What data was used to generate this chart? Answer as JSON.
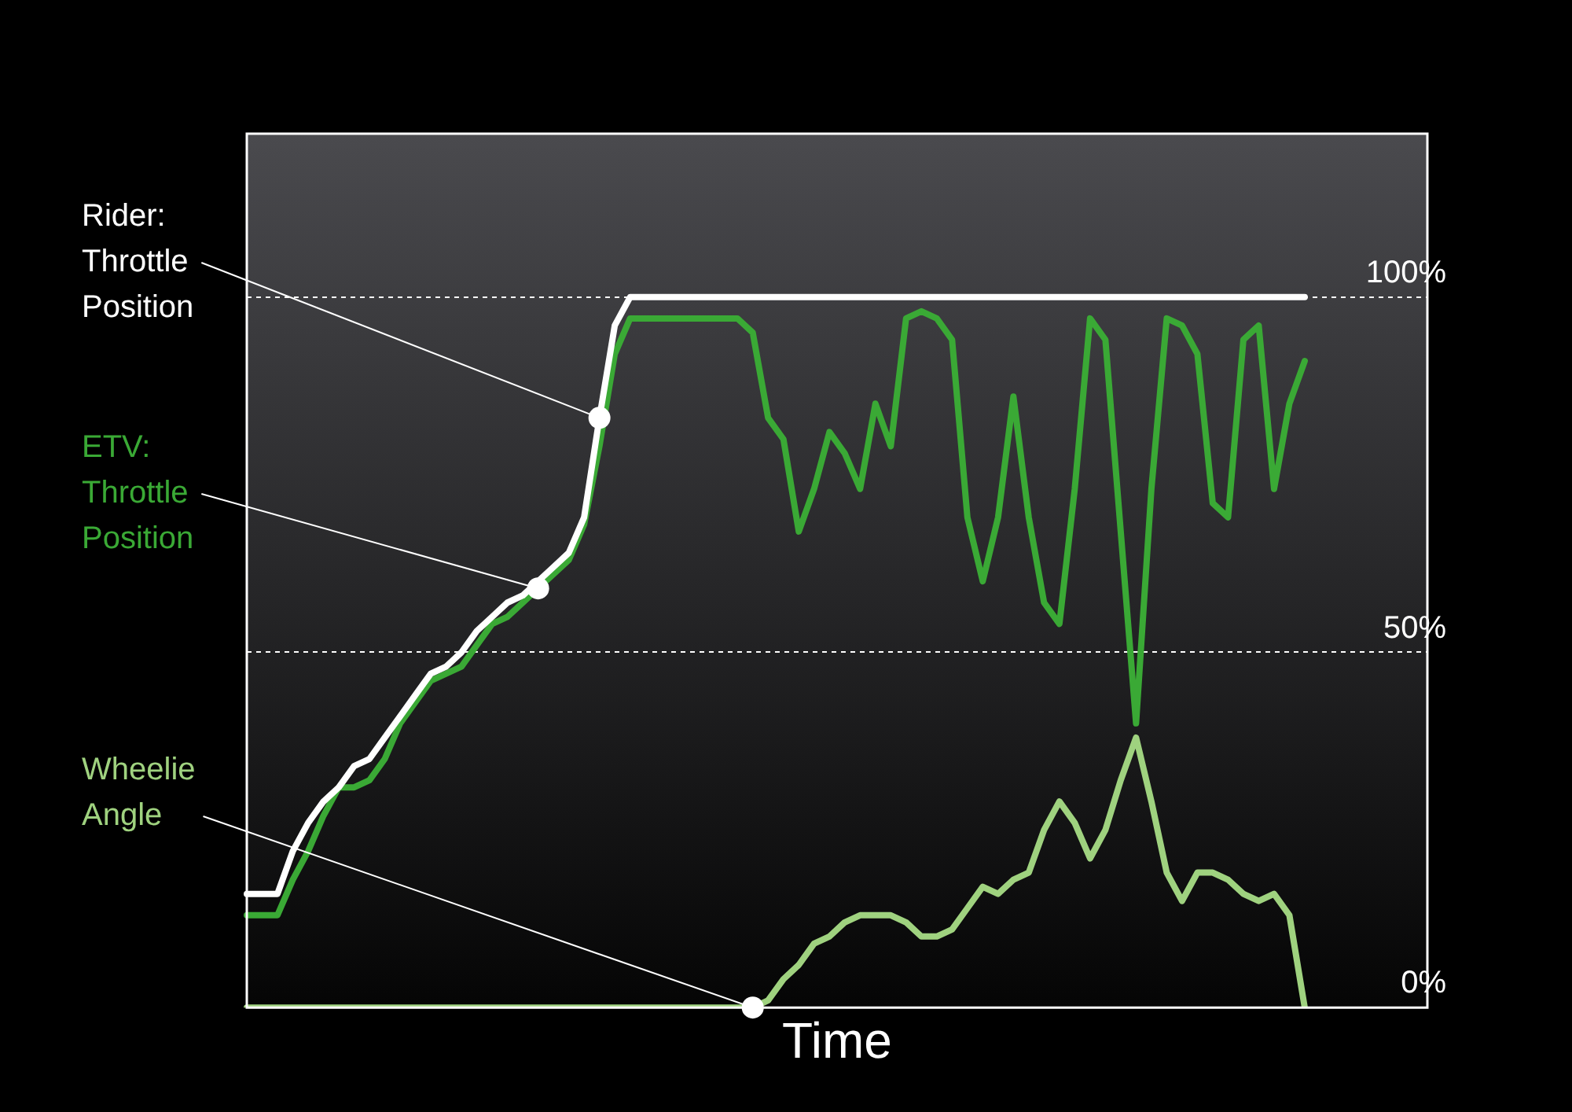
{
  "chart_data": {
    "type": "line",
    "xlabel": "Time",
    "categories": [
      null,
      null,
      null,
      null,
      null,
      null,
      null,
      null,
      null,
      null,
      null,
      null,
      null,
      null,
      null,
      null,
      null,
      null,
      null,
      null,
      null,
      null,
      null,
      null,
      null,
      null,
      null,
      null,
      null,
      null,
      null,
      null,
      null,
      null,
      null,
      null,
      null,
      null,
      null,
      null,
      null,
      null,
      null,
      null,
      null,
      null,
      null,
      null,
      null,
      null,
      null,
      null,
      null,
      null,
      null,
      null,
      null,
      null,
      null,
      null,
      null,
      null,
      null,
      null,
      null,
      null,
      null,
      null,
      null,
      null,
      null,
      null,
      null,
      null,
      null,
      null,
      null,
      null
    ],
    "series": [
      {
        "name": "Rider: Throttle Position",
        "color": "#ffffff",
        "values": [
          16,
          16,
          16,
          22,
          26,
          29,
          31,
          34,
          35,
          38,
          41,
          44,
          47,
          48,
          50,
          53,
          55,
          57,
          58,
          60,
          62,
          64,
          69,
          83,
          96,
          100,
          100,
          100,
          100,
          100,
          100,
          100,
          100,
          100,
          100,
          100,
          100,
          100,
          100,
          100,
          100,
          100,
          100,
          100,
          100,
          100,
          100,
          100,
          100,
          100,
          100,
          100,
          100,
          100,
          100,
          100,
          100,
          100,
          100,
          100,
          100,
          100,
          100,
          100,
          100,
          100,
          100,
          100,
          100,
          100,
          null,
          null,
          null,
          null,
          null,
          null,
          null,
          null
        ]
      },
      {
        "name": "ETV: Throttle Position",
        "color": "#3aa935",
        "values": [
          13,
          13,
          13,
          18,
          22,
          27,
          31,
          31,
          32,
          35,
          40,
          43,
          46,
          47,
          48,
          51,
          54,
          55,
          57,
          59,
          61,
          63,
          68,
          79,
          92,
          97,
          97,
          97,
          97,
          97,
          97,
          97,
          97,
          95,
          83,
          80,
          67,
          73,
          81,
          78,
          73,
          85,
          79,
          97,
          98,
          97,
          94,
          69,
          60,
          69,
          86,
          69,
          57,
          54,
          73,
          97,
          94,
          67,
          40,
          73,
          97,
          96,
          92,
          71,
          69,
          94,
          96,
          73,
          85,
          91,
          null,
          null,
          null,
          null,
          null,
          null,
          null,
          null
        ]
      },
      {
        "name": "Wheelie Angle",
        "color": "#9fd27f",
        "values": [
          0,
          0,
          0,
          0,
          0,
          0,
          0,
          0,
          0,
          0,
          0,
          0,
          0,
          0,
          0,
          0,
          0,
          0,
          0,
          0,
          0,
          0,
          0,
          0,
          0,
          0,
          0,
          0,
          0,
          0,
          0,
          0,
          0,
          0,
          1,
          4,
          6,
          9,
          10,
          12,
          13,
          13,
          13,
          12,
          10,
          10,
          11,
          14,
          17,
          16,
          18,
          19,
          25,
          29,
          26,
          21,
          25,
          32,
          38,
          29,
          19,
          15,
          19,
          19,
          18,
          16,
          15,
          16,
          13,
          0,
          null,
          null,
          null,
          null,
          null,
          null,
          null,
          null
        ]
      }
    ],
    "ylim": [
      0,
      123
    ],
    "yticks": [
      {
        "value": 0,
        "label": "0%"
      },
      {
        "value": 50,
        "label": "50%"
      },
      {
        "value": 100,
        "label": "100%"
      }
    ],
    "grid": "y",
    "tick_labels": "y",
    "legend": false,
    "marker": "none",
    "line_style": "solid"
  }
}
